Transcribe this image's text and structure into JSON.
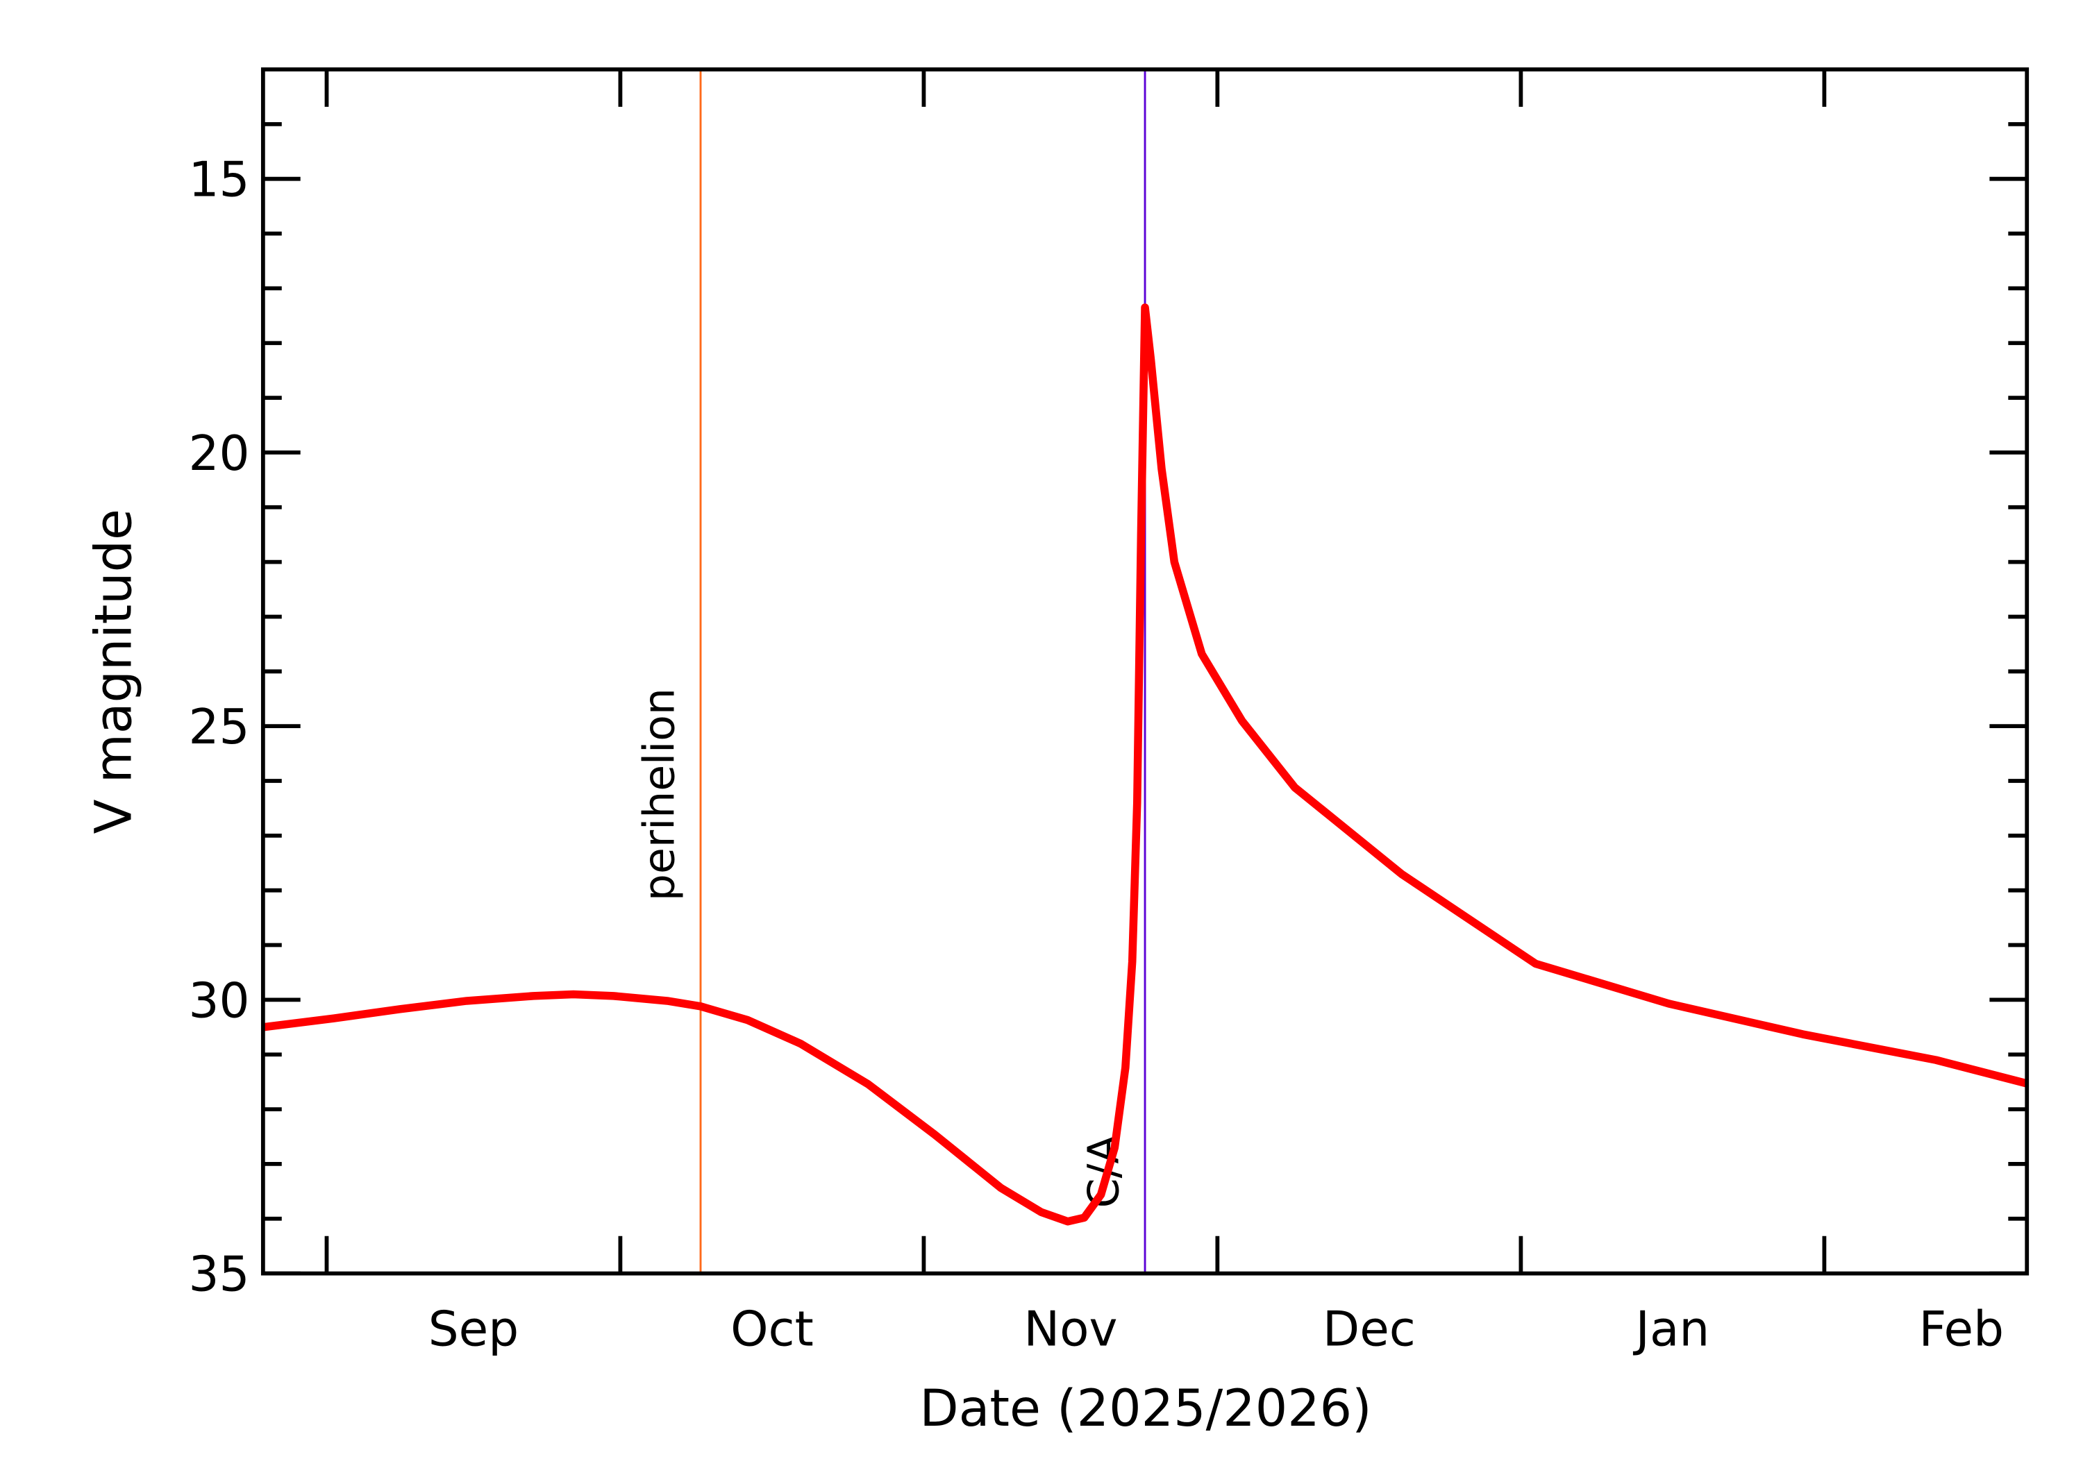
{
  "chart_data": {
    "type": "line",
    "xlabel": "Date (2025/2026)",
    "ylabel": "V magnitude",
    "x": [
      -6.5,
      0.7,
      7.5,
      14.3,
      21.1,
      25.2,
      29.3,
      34.8,
      38.2,
      43,
      48.4,
      55.3,
      62.1,
      68.9,
      73,
      75.7,
      77.4,
      79.1,
      80.5,
      81.6,
      82.3,
      82.8,
      83.2,
      83.6,
      84.2,
      85.3,
      86.6,
      89.4,
      93.5,
      98.9,
      109.8,
      123.5,
      137.1,
      150.8,
      164.4,
      173.7
    ],
    "series": [
      {
        "color": "#ff0000",
        "values": [
          30.5,
          30.34,
          30.17,
          30.02,
          29.93,
          29.9,
          29.93,
          30.02,
          30.12,
          30.37,
          30.8,
          31.54,
          32.46,
          33.44,
          33.88,
          34.05,
          33.98,
          33.56,
          32.7,
          31.24,
          29.3,
          26.4,
          21.5,
          17.35,
          18.3,
          20.3,
          22.0,
          23.68,
          24.9,
          26.12,
          27.7,
          29.34,
          30.07,
          30.63,
          31.1,
          31.53
        ]
      }
    ],
    "xlim": [
      -6.5,
      173.7
    ],
    "xticks": [
      {
        "value": 15,
        "label": "Sep"
      },
      {
        "value": 45.5,
        "label": "Oct"
      },
      {
        "value": 76,
        "label": "Nov"
      },
      {
        "value": 106.5,
        "label": "Dec"
      },
      {
        "value": 137.5,
        "label": "Jan"
      },
      {
        "value": 167,
        "label": "Feb"
      }
    ],
    "xminorticks": [
      0,
      30,
      61,
      91,
      122,
      153
    ],
    "ylim": [
      35,
      13
    ],
    "yticks": [
      15,
      20,
      25,
      30,
      35
    ],
    "yminorticks": [
      14,
      16,
      17,
      18,
      19,
      21,
      22,
      23,
      24,
      26,
      27,
      28,
      29,
      31,
      32,
      33,
      34
    ],
    "vlines": [
      {
        "x": 38.2,
        "label": "perihelion",
        "color": "#ff6a1a"
      },
      {
        "x": 83.6,
        "label": "C/A",
        "color": "#5a00d6"
      }
    ]
  }
}
